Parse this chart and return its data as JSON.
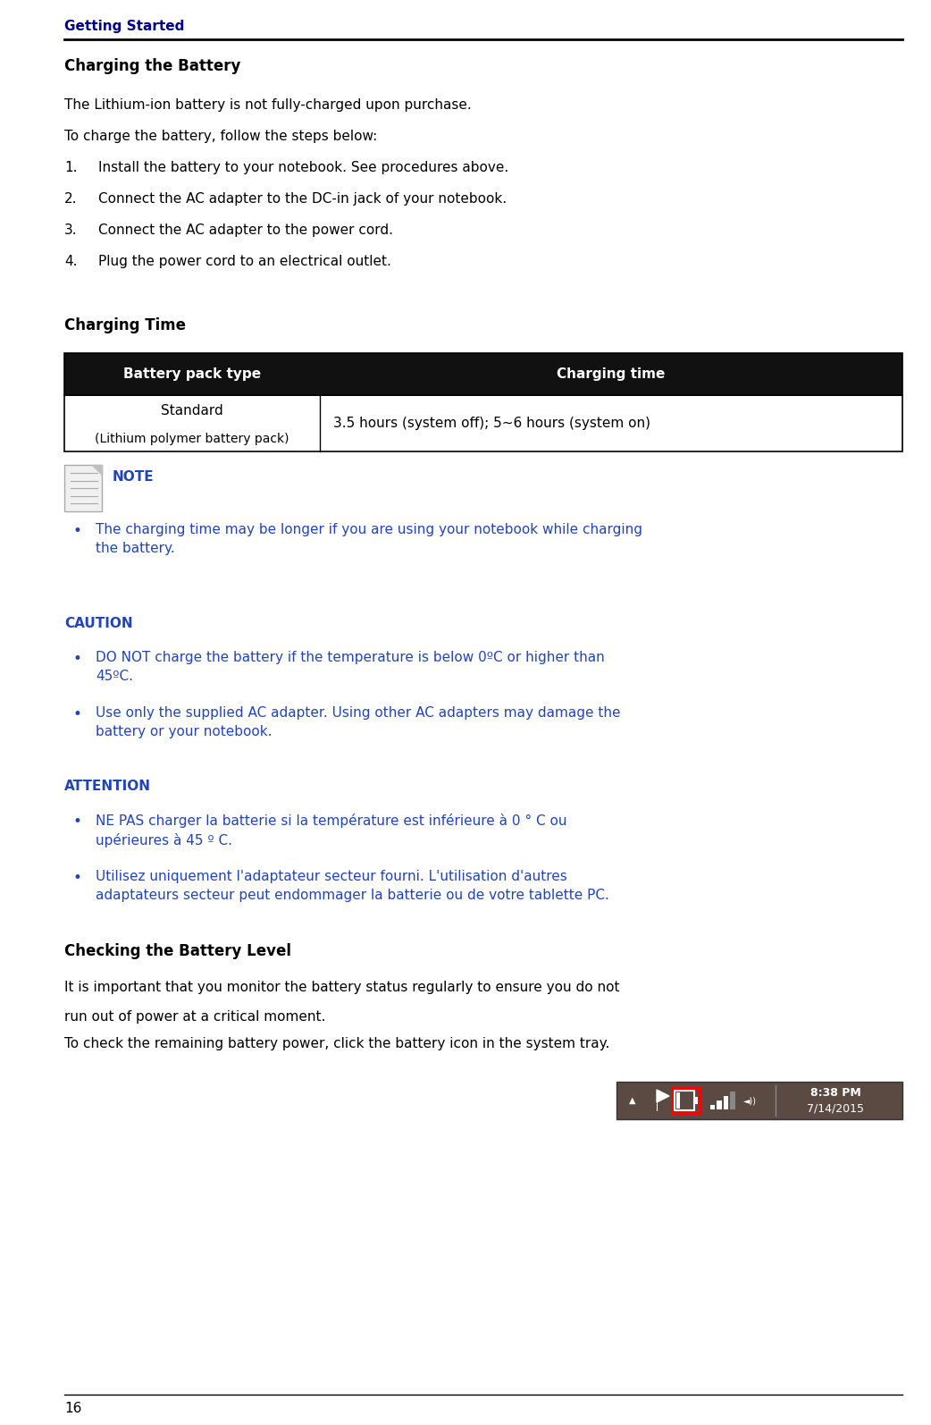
{
  "header_text": "Getting Started",
  "header_color": "#00008B",
  "section1_title": "Charging the Battery",
  "body_color": "#000000",
  "blue_text_color": "#2244BB",
  "page_bg": "#ffffff",
  "line1": "The Lithium-ion battery is not fully-charged upon purchase.",
  "line2": "To charge the battery, follow the steps below:",
  "steps": [
    "Install the battery to your notebook. See procedures above.",
    "Connect the AC adapter to the DC-in jack of your notebook.",
    "Connect the AC adapter to the power cord.",
    "Plug the power cord to an electrical outlet."
  ],
  "section2_title": "Charging Time",
  "table_header_bg": "#111111",
  "table_header_color": "#ffffff",
  "table_col1_header": "Battery pack type",
  "table_col2_header": "Charging time",
  "table_row1_col1_line1": "Standard",
  "table_row1_col1_line2": "(Lithium polymer battery pack)",
  "table_row1_col2": "3.5 hours (system off); 5~6 hours (system on)",
  "note_label": "NOTE",
  "note_bullet": "The charging time may be longer if you are using your notebook while charging\nthe battery.",
  "caution_label": "CAUTION",
  "caution_items": [
    "DO NOT charge the battery if the temperature is below 0ºC or higher than\n45ºC.",
    "Use only the supplied AC adapter. Using other AC adapters may damage the\nbattery or your notebook."
  ],
  "attention_label": "ATTENTION",
  "attention_items": [
    "NE PAS charger la batterie si la température est inférieure à 0 ° C ou\nupérieures à 45 º C.",
    "Utilisez uniquement l'adaptateur secteur fourni. L'utilisation d'autres\nadaptateurs secteur peut endommager la batterie ou de votre tablette PC."
  ],
  "section3_title": "Checking the Battery Level",
  "section3_line1": "It is important that you monitor the battery status regularly to ensure you do not",
  "section3_line2": "run out of power at a critical moment.",
  "section3_line3": "To check the remaining battery power, click the battery icon in the system tray.",
  "footer_number": "16",
  "tray_time": "8:38 PM",
  "tray_date": "7/14/2015",
  "tray_bg": "#5a4a42",
  "tray_fg": "#ffffff"
}
